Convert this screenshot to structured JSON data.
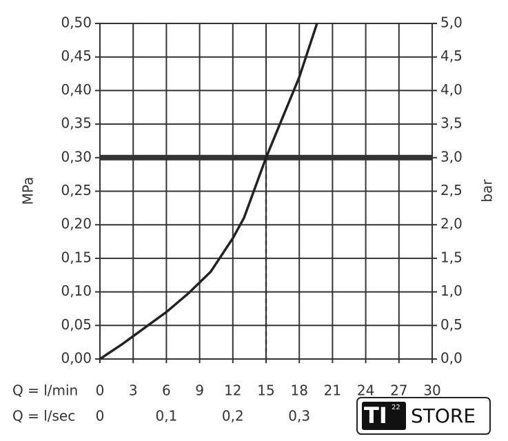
{
  "chart_data": {
    "type": "line",
    "x": [
      0,
      2,
      4,
      6,
      8,
      10,
      12,
      13,
      14,
      15,
      16,
      17,
      18,
      19,
      19.6
    ],
    "values": [
      0,
      0.022,
      0.046,
      0.07,
      0.098,
      0.13,
      0.18,
      0.21,
      0.255,
      0.3,
      0.34,
      0.38,
      0.42,
      0.47,
      0.5
    ],
    "color": "#222222",
    "xlabel": "Q = l/min",
    "x2label": "Q = l/sec",
    "ylabel": "MPa",
    "y2label": "bar",
    "xlim": [
      0,
      30
    ],
    "xticks": [
      0,
      3,
      6,
      9,
      12,
      15,
      18,
      21,
      24,
      27,
      30
    ],
    "x2lim": [
      0,
      0.5
    ],
    "x2ticks": [
      0,
      {
        "value": 0.1,
        "label": "0,1"
      },
      {
        "value": 0.2,
        "label": "0,2"
      },
      {
        "value": 0.3,
        "label": "0,3"
      }
    ],
    "ylim": [
      0,
      0.5
    ],
    "yticks": [
      {
        "value": 0,
        "label": "0,00"
      },
      {
        "value": 0.05,
        "label": "0,05"
      },
      {
        "value": 0.1,
        "label": "0,10"
      },
      {
        "value": 0.15,
        "label": "0,15"
      },
      {
        "value": 0.2,
        "label": "0,20"
      },
      {
        "value": 0.25,
        "label": "0,25"
      },
      {
        "value": 0.3,
        "label": "0,30"
      },
      {
        "value": 0.35,
        "label": "0,35"
      },
      {
        "value": 0.4,
        "label": "0,40"
      },
      {
        "value": 0.45,
        "label": "0,45"
      },
      {
        "value": 0.5,
        "label": "0,50"
      }
    ],
    "y2lim": [
      0,
      5
    ],
    "y2ticks": [
      {
        "value": 0,
        "label": "0,0"
      },
      {
        "value": 0.5,
        "label": "0,5"
      },
      {
        "value": 1,
        "label": "1,0"
      },
      {
        "value": 1.5,
        "label": "1,5"
      },
      {
        "value": 2,
        "label": "2,0"
      },
      {
        "value": 2.5,
        "label": "2,5"
      },
      {
        "value": 3,
        "label": "3,0"
      },
      {
        "value": 3.5,
        "label": "3,5"
      },
      {
        "value": 4,
        "label": "4,0"
      },
      {
        "value": 4.5,
        "label": "4,5"
      },
      {
        "value": 5,
        "label": "5,0"
      }
    ],
    "grid": true,
    "operating_point": {
      "x": 15,
      "y": 0.3
    }
  },
  "watermark": {
    "brand": "TI",
    "superscript": "22",
    "store": "STORE"
  }
}
